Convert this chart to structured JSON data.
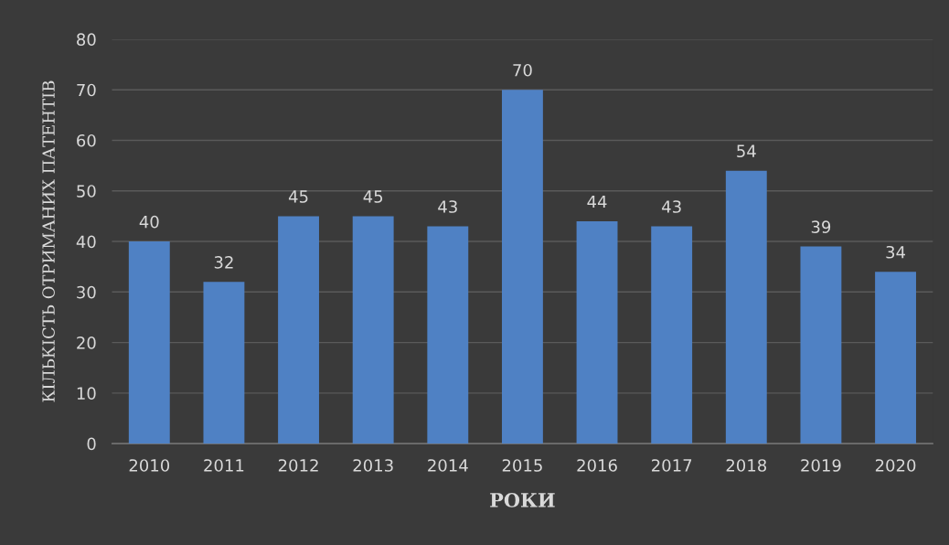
{
  "chart_data": {
    "type": "bar",
    "xlabel": "РОКИ",
    "ylabel": "КІЛЬКІСТЬ ОТРИМАНИХ ПАТЕНТІВ",
    "categories": [
      "2010",
      "2011",
      "2012",
      "2013",
      "2014",
      "2015",
      "2016",
      "2017",
      "2018",
      "2019",
      "2020"
    ],
    "values": [
      40,
      32,
      45,
      45,
      43,
      70,
      44,
      43,
      54,
      39,
      34
    ],
    "color": "#4f81c4",
    "ylim": [
      0,
      80
    ],
    "yticks": [
      0,
      10,
      20,
      30,
      40,
      50,
      60,
      70,
      80
    ],
    "grid": "y",
    "data_labels": true
  }
}
